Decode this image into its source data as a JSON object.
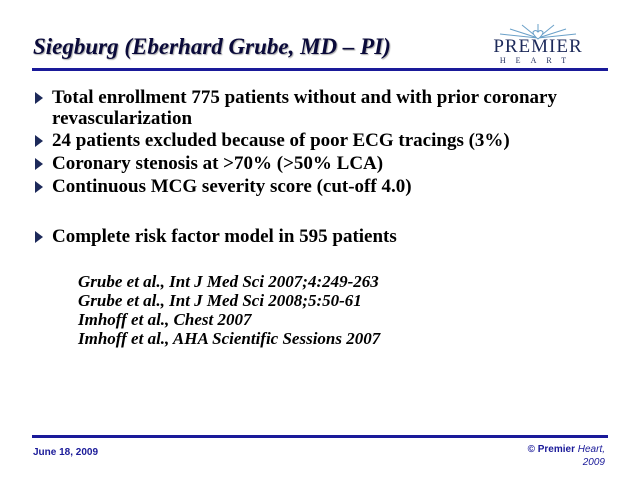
{
  "title": "Siegburg (Eberhard Grube, MD – PI)",
  "logo": {
    "word": "PREMIER",
    "sub": "HEART"
  },
  "bullets": [
    "Total enrollment 775 patients without and with prior coronary revascularization",
    "24 patients excluded because of poor ECG tracings (3%)",
    "Coronary stenosis at >70% (>50% LCA)",
    "Continuous MCG severity score (cut-off 4.0)",
    "Complete risk factor model in 595 patients"
  ],
  "references": [
    "Grube et al., Int J Med Sci 2007;4:249-263",
    "Grube et al., Int J Med Sci 2008;5:50-61",
    "Imhoff et al., Chest 2007",
    "Imhoff et al., AHA Scientific Sessions 2007"
  ],
  "footer": {
    "date": "June 18, 2009",
    "copyright_prefix": "© Premier",
    "copyright_italic": "Heart,",
    "copyright_year": "2009"
  },
  "colors": {
    "accent": "#1a1a99",
    "title": "#0a0a3a"
  }
}
